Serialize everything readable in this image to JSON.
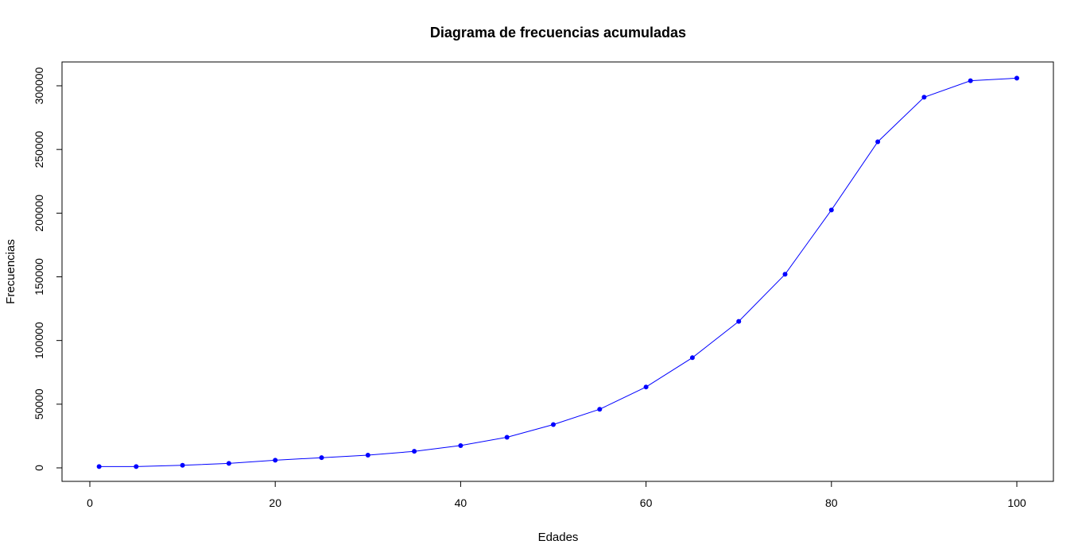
{
  "chart_data": {
    "type": "line",
    "title": "Diagrama de frecuencias acumuladas",
    "xlabel": "Edades",
    "ylabel": "Frecuencias",
    "x": [
      1,
      5,
      10,
      15,
      20,
      25,
      30,
      35,
      40,
      45,
      50,
      55,
      60,
      65,
      70,
      75,
      80,
      85,
      90,
      95,
      100
    ],
    "series": [
      {
        "values": [
          1000,
          1000,
          2000,
          3500,
          6000,
          8000,
          10000,
          13000,
          17500,
          24000,
          34000,
          46000,
          63500,
          86500,
          115000,
          152000,
          202500,
          256000,
          291000,
          304000,
          306000
        ]
      }
    ],
    "xlim": [
      0,
      100
    ],
    "ylim": [
      0,
      300000
    ],
    "xticks": [
      "0",
      "20",
      "40",
      "60",
      "80",
      "100"
    ],
    "yticks": [
      "0",
      "50000",
      "100000",
      "150000",
      "200000",
      "250000",
      "300000"
    ],
    "line_color": "#0000ff",
    "marker_color": "#0000ff",
    "grid": false,
    "legend": "none"
  }
}
